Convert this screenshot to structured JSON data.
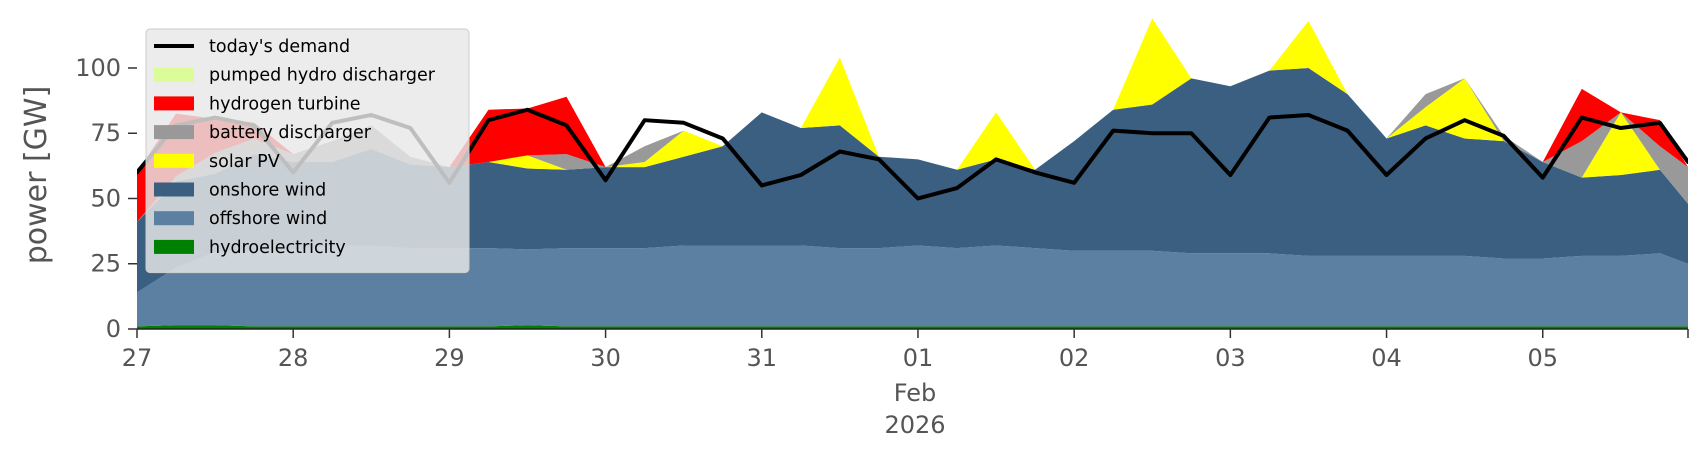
{
  "chart_data": {
    "type": "area",
    "ylabel": "power [GW]",
    "ylim": [
      0,
      118
    ],
    "yticks": [
      0,
      25,
      50,
      75,
      100
    ],
    "xlim": [
      0,
      9.93
    ],
    "xticks": [
      {
        "pos": 0,
        "label": "27"
      },
      {
        "pos": 1,
        "label": "28"
      },
      {
        "pos": 2,
        "label": "29"
      },
      {
        "pos": 3,
        "label": "30"
      },
      {
        "pos": 4,
        "label": "31"
      },
      {
        "pos": 5,
        "label": "01"
      },
      {
        "pos": 6,
        "label": "02"
      },
      {
        "pos": 7,
        "label": "03"
      },
      {
        "pos": 8,
        "label": "04"
      },
      {
        "pos": 9,
        "label": "05"
      }
    ],
    "xlabel_month": "Feb",
    "xlabel_year": "2026",
    "grid": false,
    "legend_position": "top-left",
    "x_days": [
      0,
      0.25,
      0.5,
      0.75,
      1,
      1.25,
      1.5,
      1.75,
      2,
      2.25,
      2.5,
      2.75,
      3,
      3.25,
      3.5,
      3.75,
      4,
      4.25,
      4.5,
      4.75,
      5,
      5.25,
      5.5,
      5.75,
      6,
      6.25,
      6.5,
      6.75,
      7,
      7.25,
      7.5,
      7.75,
      8,
      8.25,
      8.5,
      8.75,
      9,
      9.25,
      9.5,
      9.75,
      9.93
    ],
    "series": [
      {
        "name": "hydroelectricity",
        "color": "#008000",
        "values": [
          1,
          1.5,
          1.5,
          1,
          1,
          1,
          1,
          1,
          1,
          1,
          1.5,
          1,
          1,
          1,
          1,
          1,
          1,
          1,
          1,
          1,
          1,
          1,
          1,
          1,
          1,
          1,
          1,
          1,
          1,
          1,
          1,
          1,
          1,
          1,
          1,
          1,
          1,
          1,
          1,
          1,
          1
        ]
      },
      {
        "name": "offshore wind",
        "color": "#5b80a2",
        "values": [
          13,
          22,
          28,
          29,
          29,
          31,
          31,
          30,
          30,
          30,
          29,
          30,
          30,
          30,
          31,
          31,
          31,
          31,
          30,
          30,
          31,
          30,
          31,
          30,
          29,
          29,
          29,
          28,
          28,
          28,
          27,
          27,
          27,
          27,
          27,
          26,
          26,
          27,
          27,
          28,
          24
        ]
      },
      {
        "name": "onshore wind",
        "color": "#3b5f80",
        "values": [
          27,
          33,
          30,
          37,
          34,
          32,
          37,
          32,
          31,
          33,
          31,
          30,
          31,
          31,
          34,
          38,
          51,
          45,
          47,
          35,
          33,
          30,
          33,
          30,
          42,
          54,
          56,
          67,
          64,
          70,
          72,
          62,
          45,
          50,
          45,
          45,
          37,
          30,
          31,
          32,
          23
        ]
      },
      {
        "name": "solar PV",
        "color": "#ffff00",
        "values": [
          0,
          0,
          0,
          0,
          0,
          0,
          0,
          0,
          0,
          0,
          5,
          0,
          0,
          2,
          10,
          0,
          0,
          0,
          26,
          0,
          0,
          0,
          18,
          0,
          0,
          0,
          33,
          0,
          0,
          0,
          18,
          0,
          0,
          7,
          23,
          0,
          0,
          0,
          24,
          0,
          0
        ]
      },
      {
        "name": "battery discharger",
        "color": "#999999",
        "values": [
          0,
          2,
          8,
          6,
          3,
          8,
          9,
          3,
          0,
          0,
          0,
          6,
          0,
          6,
          0,
          0,
          0,
          0,
          0,
          0,
          0,
          0,
          0,
          0,
          0,
          0,
          0,
          0,
          0,
          0,
          0,
          0,
          0,
          5,
          0,
          2,
          0,
          14,
          0,
          9,
          14
        ]
      },
      {
        "name": "hydrogen turbine",
        "color": "#ff0000",
        "values": [
          19,
          24,
          13,
          6,
          0,
          0,
          0,
          0,
          0,
          20,
          18,
          22,
          0,
          0,
          0,
          0,
          0,
          0,
          0,
          0,
          0,
          0,
          0,
          0,
          0,
          0,
          0,
          0,
          0,
          0,
          0,
          0,
          0,
          0,
          0,
          0,
          0,
          20,
          0,
          10,
          0
        ]
      },
      {
        "name": "pumped hydro discharger",
        "color": "#dbfc98",
        "values": [
          0,
          0,
          0,
          0,
          0,
          0,
          0,
          0,
          0,
          0,
          0,
          0,
          0,
          0,
          0,
          0,
          0,
          0,
          0,
          0,
          0,
          0,
          0,
          0,
          0,
          0,
          0,
          0,
          0,
          0,
          0,
          0,
          0,
          0,
          0,
          0,
          0,
          0,
          0,
          0,
          0
        ]
      }
    ],
    "demand": {
      "name": "today's demand",
      "color": "#000000",
      "values": [
        60,
        78,
        81,
        78,
        60,
        79,
        82,
        77,
        56,
        80,
        84,
        78,
        57,
        80,
        79,
        73,
        55,
        59,
        68,
        65,
        50,
        54,
        65,
        60,
        56,
        76,
        75,
        75,
        59,
        81,
        82,
        76,
        59,
        73,
        80,
        74,
        58,
        81,
        77,
        79,
        64
      ]
    }
  }
}
